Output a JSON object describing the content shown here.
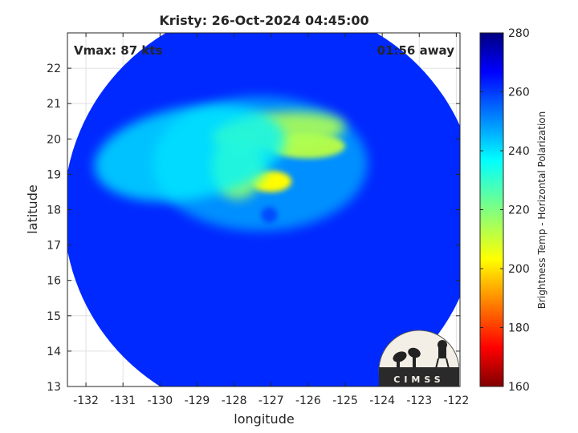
{
  "chart_data": {
    "type": "heatmap",
    "title": "Kristy: 26-Oct-2024 04:45:00",
    "xlabel": "longitude",
    "ylabel": "latitude",
    "xlim": [
      -132.5,
      -121.9
    ],
    "ylim": [
      13,
      23
    ],
    "xticks": [
      -132,
      -131,
      -130,
      -129,
      -128,
      -127,
      -126,
      -125,
      -124,
      -123,
      -122
    ],
    "yticks": [
      13,
      14,
      15,
      16,
      17,
      18,
      19,
      20,
      21,
      22
    ],
    "grid": true,
    "annotations": {
      "vmax": "Vmax: 87 kts",
      "time_offset": "01:56 away"
    },
    "colorbar": {
      "label": "Brightness Temp - Horizontal Polarization",
      "min": 160,
      "max": 280,
      "ticks": [
        160,
        180,
        200,
        220,
        240,
        260,
        280
      ],
      "colormap": "jet"
    },
    "field": {
      "center_lon": -127.0,
      "center_lat": 17.95,
      "swath_radius_deg": 5.6,
      "background_temp": 262,
      "features": [
        {
          "name": "eyewall-core",
          "lon": -127.0,
          "lat": 18.8,
          "temp": 203
        },
        {
          "name": "northeast-band",
          "lon": -126.0,
          "lat": 19.8,
          "temp": 212
        },
        {
          "name": "north-band",
          "lon": -126.8,
          "lat": 20.2,
          "temp": 214
        },
        {
          "name": "inner-ring",
          "lon": -127.9,
          "lat": 19.2,
          "temp": 218
        },
        {
          "name": "outer-spiral",
          "lon": -129.2,
          "lat": 19.6,
          "temp": 238
        }
      ]
    }
  },
  "logo": {
    "text": "CIMSS"
  }
}
